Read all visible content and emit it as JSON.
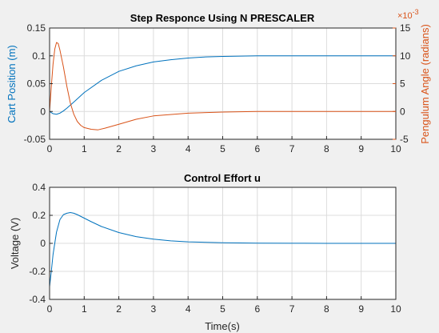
{
  "colors": {
    "blue": "#0072BD",
    "orange": "#D95319",
    "axis": "#262626",
    "grid": "#DCDCDC",
    "background": "#F0F0F0"
  },
  "chart_data": [
    {
      "type": "line",
      "title": "Step Responce Using N PRESCALER",
      "xlabel": "",
      "xlim": [
        0,
        10
      ],
      "xticks": [
        "0",
        "1",
        "2",
        "3",
        "4",
        "5",
        "6",
        "7",
        "8",
        "9",
        "10"
      ],
      "ylabel_left": "Cart Position (m)",
      "ylim_left": [
        -0.05,
        0.15
      ],
      "yticks_left": [
        "-0.05",
        "0",
        "0.05",
        "0.1",
        "0.15"
      ],
      "ylabel_right": "Pengulum Angle (radians)",
      "ylim_right": [
        -5,
        15
      ],
      "yticks_right": [
        "-5",
        "0",
        "5",
        "10",
        "15"
      ],
      "right_exponent_base": "×10",
      "right_exponent_power": "-3",
      "grid": true,
      "series": [
        {
          "axis": "left",
          "color": "#0072BD",
          "x": [
            0,
            0.1,
            0.2,
            0.3,
            0.4,
            0.5,
            0.7,
            1.0,
            1.5,
            2.0,
            2.5,
            3.0,
            3.5,
            4.0,
            4.5,
            5.0,
            6.0,
            7.0,
            8.0,
            10.0
          ],
          "y": [
            0,
            -0.004,
            -0.005,
            -0.003,
            0.001,
            0.006,
            0.017,
            0.034,
            0.056,
            0.072,
            0.082,
            0.089,
            0.093,
            0.096,
            0.098,
            0.099,
            0.1,
            0.1,
            0.1,
            0.1
          ]
        },
        {
          "axis": "right",
          "color": "#D95319",
          "x": [
            0,
            0.05,
            0.1,
            0.15,
            0.2,
            0.25,
            0.3,
            0.4,
            0.5,
            0.6,
            0.7,
            0.8,
            0.9,
            1.0,
            1.2,
            1.4,
            1.6,
            2.0,
            2.5,
            3.0,
            4.0,
            5.0,
            6.0,
            10.0
          ],
          "y": [
            0,
            4.5,
            8.5,
            11.2,
            12.4,
            12.2,
            11.0,
            8.0,
            4.5,
            1.5,
            -0.5,
            -1.8,
            -2.5,
            -2.9,
            -3.2,
            -3.3,
            -3.0,
            -2.3,
            -1.4,
            -0.8,
            -0.3,
            -0.1,
            0,
            0
          ]
        }
      ]
    },
    {
      "type": "line",
      "title": "Control Effort u",
      "xlabel": "Time(s)",
      "xlim": [
        0,
        10
      ],
      "xticks": [
        "0",
        "1",
        "2",
        "3",
        "4",
        "5",
        "6",
        "7",
        "8",
        "9",
        "10"
      ],
      "ylabel": "Voltage (V)",
      "ylim": [
        -0.4,
        0.4
      ],
      "yticks": [
        "-0.4",
        "-0.2",
        "0",
        "0.2",
        "0.4"
      ],
      "grid": true,
      "series": [
        {
          "color": "#0072BD",
          "x": [
            0,
            0.05,
            0.1,
            0.2,
            0.3,
            0.4,
            0.5,
            0.6,
            0.7,
            0.8,
            1.0,
            1.2,
            1.5,
            2.0,
            2.5,
            3.0,
            3.5,
            4.0,
            5.0,
            6.0,
            7.0,
            8.0,
            10.0
          ],
          "y": [
            -0.31,
            -0.2,
            -0.08,
            0.08,
            0.17,
            0.205,
            0.215,
            0.22,
            0.215,
            0.205,
            0.18,
            0.155,
            0.12,
            0.077,
            0.048,
            0.03,
            0.018,
            0.011,
            0.004,
            0.0015,
            0.0005,
            0.0002,
            0
          ]
        }
      ]
    }
  ]
}
